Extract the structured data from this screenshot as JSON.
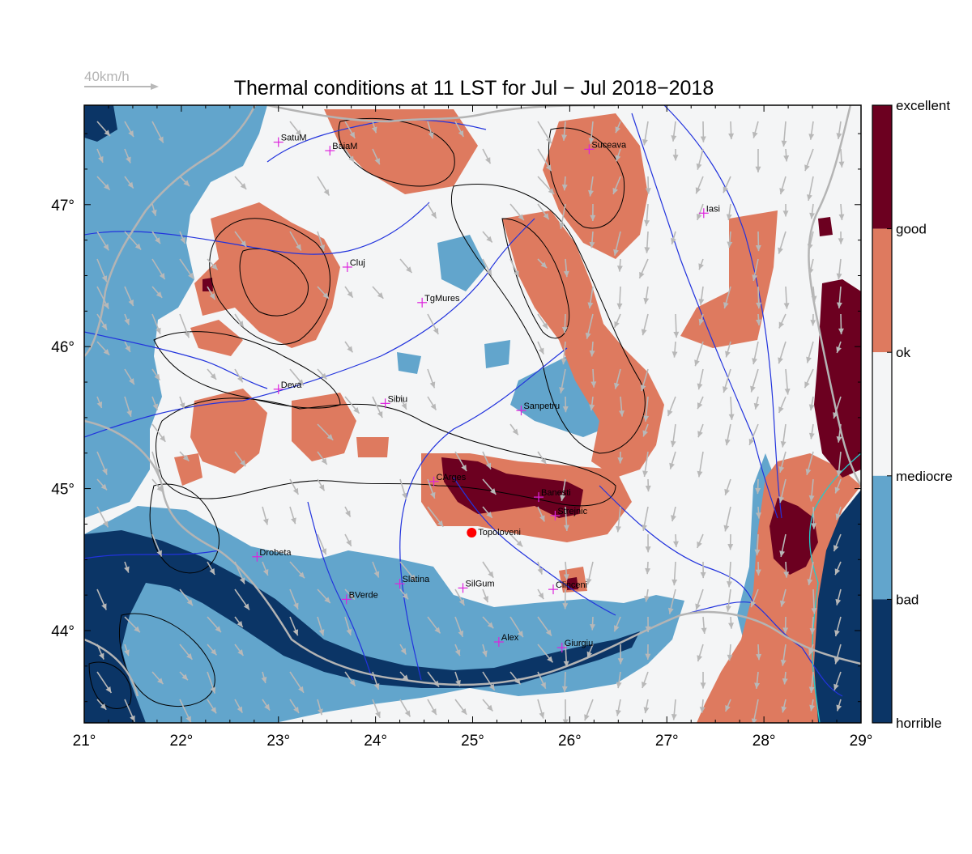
{
  "title": "Thermal conditions at 11 LST for Jul − Jul  2018−2018",
  "wind_legend": {
    "label": "40km/h"
  },
  "map": {
    "lon_range": [
      21,
      29
    ],
    "lat_range": [
      43.35,
      47.7
    ],
    "lon_ticks": [
      {
        "value": 21,
        "label": "21°"
      },
      {
        "value": 22,
        "label": "22°"
      },
      {
        "value": 23,
        "label": "23°"
      },
      {
        "value": 24,
        "label": "24°"
      },
      {
        "value": 25,
        "label": "25°"
      },
      {
        "value": 26,
        "label": "26°"
      },
      {
        "value": 27,
        "label": "27°"
      },
      {
        "value": 28,
        "label": "28°"
      },
      {
        "value": 29,
        "label": "29°"
      }
    ],
    "lat_ticks": [
      {
        "value": 44,
        "label": "44°"
      },
      {
        "value": 45,
        "label": "45°"
      },
      {
        "value": 46,
        "label": "46°"
      },
      {
        "value": 47,
        "label": "47°"
      }
    ]
  },
  "colorbar": {
    "classes": [
      {
        "label": "horrible",
        "color": "#0b3566"
      },
      {
        "label": "bad",
        "color": "#62a5cc"
      },
      {
        "label": "mediocre",
        "color": "#f4f5f6"
      },
      {
        "label": "ok",
        "color": "#f4f5f6"
      },
      {
        "label": "good",
        "color": "#de7a5f"
      },
      {
        "label": "excellent",
        "color": "#6c0020"
      }
    ],
    "labels": [
      "excellent",
      "good",
      "ok",
      "mediocre",
      "bad",
      "horrible"
    ]
  },
  "colors": {
    "horrible": "#0b3566",
    "bad": "#62a5cc",
    "ok": "#f4f5f6",
    "good": "#de7a5f",
    "excellent": "#6c0020",
    "river": "#2233dd",
    "border": "#b4b4b4",
    "city_marker": "#dd22dd",
    "highlight_marker": "#ff0000",
    "wind": "#b8b8b8",
    "coast": "#22cccc"
  },
  "cities": [
    {
      "name": "SatuM",
      "lon": 23.0,
      "lat": 47.44
    },
    {
      "name": "BaiaM",
      "lon": 23.53,
      "lat": 47.38
    },
    {
      "name": "Suceava",
      "lon": 26.2,
      "lat": 47.39
    },
    {
      "name": "Iasi",
      "lon": 27.38,
      "lat": 46.94
    },
    {
      "name": "Cluj",
      "lon": 23.71,
      "lat": 46.56
    },
    {
      "name": "TgMures",
      "lon": 24.48,
      "lat": 46.31
    },
    {
      "name": "Deva",
      "lon": 23.0,
      "lat": 45.7
    },
    {
      "name": "Sibiu",
      "lon": 24.1,
      "lat": 45.6
    },
    {
      "name": "Sanpetru",
      "lon": 25.5,
      "lat": 45.55
    },
    {
      "name": "CArges",
      "lon": 24.6,
      "lat": 45.05
    },
    {
      "name": "Banesti",
      "lon": 25.68,
      "lat": 44.94
    },
    {
      "name": "Strejnic",
      "lon": 25.85,
      "lat": 44.81
    },
    {
      "name": "Drobeta",
      "lon": 22.78,
      "lat": 44.52
    },
    {
      "name": "Slatina",
      "lon": 24.25,
      "lat": 44.33
    },
    {
      "name": "SilGum",
      "lon": 24.9,
      "lat": 44.3
    },
    {
      "name": "Clinceni",
      "lon": 25.83,
      "lat": 44.29
    },
    {
      "name": "BVerde",
      "lon": 23.7,
      "lat": 44.22
    },
    {
      "name": "Alex",
      "lon": 25.27,
      "lat": 43.92
    },
    {
      "name": "Giurgiu",
      "lon": 25.92,
      "lat": 43.88
    }
  ],
  "highlight_site": {
    "name": "Topoloveni",
    "lon": 24.99,
    "lat": 44.69
  }
}
